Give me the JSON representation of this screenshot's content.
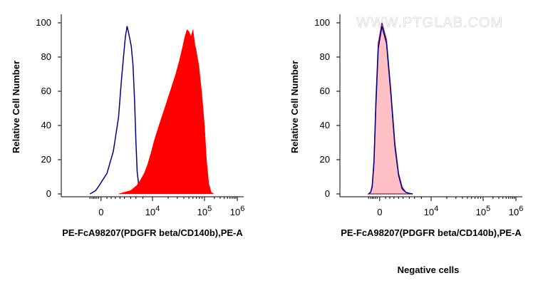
{
  "watermark": "WWW.PTGLAB.COM",
  "caption": "Negative cells",
  "colors": {
    "positive_fill": "#ff0000",
    "control_line": "#00008b",
    "negative_fill": "#ffc0c6",
    "negative_line": "#8b1a5a"
  },
  "chart_data": [
    {
      "type": "area",
      "name": "left-histogram",
      "ylabel": "Relative Cell Number",
      "xlabel": "PE-FcA98207(PDGFR beta/CD140b),PE-A",
      "x_scale": "biexponential",
      "ylim": [
        0,
        100
      ],
      "y_ticks": [
        "0",
        "20",
        "40",
        "60",
        "80",
        "100"
      ],
      "x_ticks": [
        {
          "label": "0",
          "value": 0
        },
        {
          "label": "10",
          "sup": "4",
          "value": 10000
        },
        {
          "label": "10",
          "sup": "5",
          "value": 100000
        },
        {
          "label": "10",
          "sup": "6",
          "value": 1000000
        }
      ],
      "series": [
        {
          "style": "outline",
          "color": "#00008b",
          "x": [
            -1500,
            -800,
            -400,
            -100,
            150,
            400,
            700,
            900,
            1100,
            1300,
            1500,
            1700,
            1900,
            2100,
            2400,
            2700,
            3000,
            3300,
            3700,
            4200,
            5000
          ],
          "y": [
            0,
            1,
            2,
            5,
            12,
            25,
            45,
            65,
            80,
            92,
            98,
            94,
            90,
            86,
            75,
            55,
            30,
            13,
            5,
            1,
            0
          ]
        },
        {
          "style": "filled",
          "color": "#ff0000",
          "x": [
            700,
            2000,
            3200,
            4200,
            5500,
            7000,
            9000,
            11000,
            14000,
            18000,
            23000,
            28000,
            33000,
            38000,
            42000,
            46000,
            50000,
            55000,
            60000,
            65000,
            70000,
            78000,
            88000,
            100000,
            115000,
            135000,
            160000,
            190000
          ],
          "y": [
            0,
            2,
            5,
            8,
            12,
            17,
            24,
            32,
            42,
            52,
            62,
            70,
            78,
            86,
            92,
            96,
            95,
            92,
            96,
            88,
            83,
            75,
            60,
            40,
            20,
            6,
            1,
            0
          ]
        }
      ]
    },
    {
      "type": "area",
      "name": "right-histogram",
      "ylabel": "Relative Cell Number",
      "xlabel": "PE-FcA98207(PDGFR beta/CD140b),PE-A",
      "x_scale": "biexponential",
      "ylim": [
        0,
        100
      ],
      "y_ticks": [
        "0",
        "20",
        "40",
        "60",
        "80",
        "100"
      ],
      "x_ticks": [
        {
          "label": "0",
          "value": 0
        },
        {
          "label": "10",
          "sup": "4",
          "value": 10000
        },
        {
          "label": "10",
          "sup": "5",
          "value": 100000
        },
        {
          "label": "10",
          "sup": "6",
          "value": 1000000
        }
      ],
      "series": [
        {
          "style": "filled",
          "color": "#ffc0c6",
          "line_color": "#8b1a5a",
          "x": [
            -1500,
            -1000,
            -700,
            -450,
            -250,
            -80,
            50,
            180,
            350,
            550,
            800,
            1100,
            1500,
            2000,
            2600
          ],
          "y": [
            0,
            1,
            5,
            20,
            55,
            88,
            100,
            90,
            60,
            30,
            12,
            4,
            1,
            0.3,
            0
          ]
        },
        {
          "style": "outline",
          "color": "#00008b",
          "x": [
            -1500,
            -1000,
            -700,
            -450,
            -250,
            -80,
            50,
            180,
            350,
            550,
            800,
            1100,
            1500,
            2000,
            2600
          ],
          "y": [
            0,
            1,
            4,
            18,
            52,
            85,
            98,
            88,
            58,
            28,
            11,
            3,
            1,
            0.3,
            0
          ]
        }
      ]
    }
  ]
}
